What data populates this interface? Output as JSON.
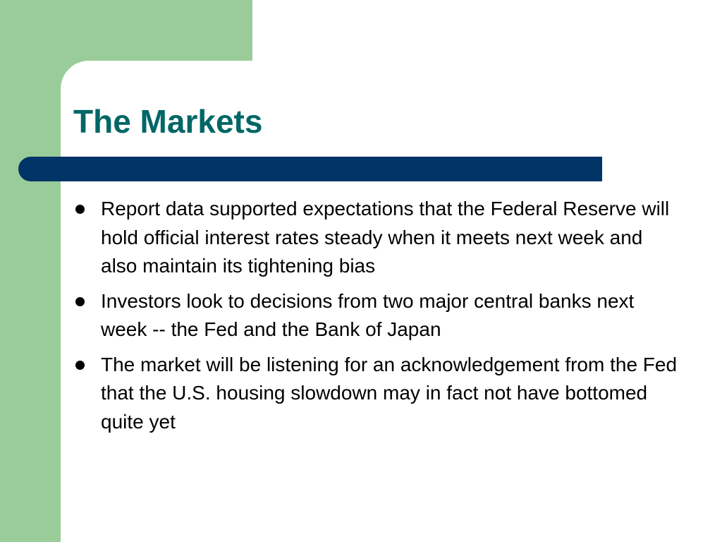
{
  "slide": {
    "title": "The Markets",
    "bullets": [
      "Report data supported expectations that the Federal Reserve will hold official interest rates steady when it meets next week and also maintain its tightening bias",
      "Investors look to decisions from two major central banks next week -- the Fed and the Bank of Japan",
      "The market will be listening for an acknowledgement from the Fed that the U.S. housing slowdown may in fact not have bottomed quite yet"
    ]
  },
  "colors": {
    "title": "#006666",
    "accent_bar": "#003366",
    "side_block": "#99cc99",
    "text": "#000000",
    "background": "#ffffff"
  }
}
